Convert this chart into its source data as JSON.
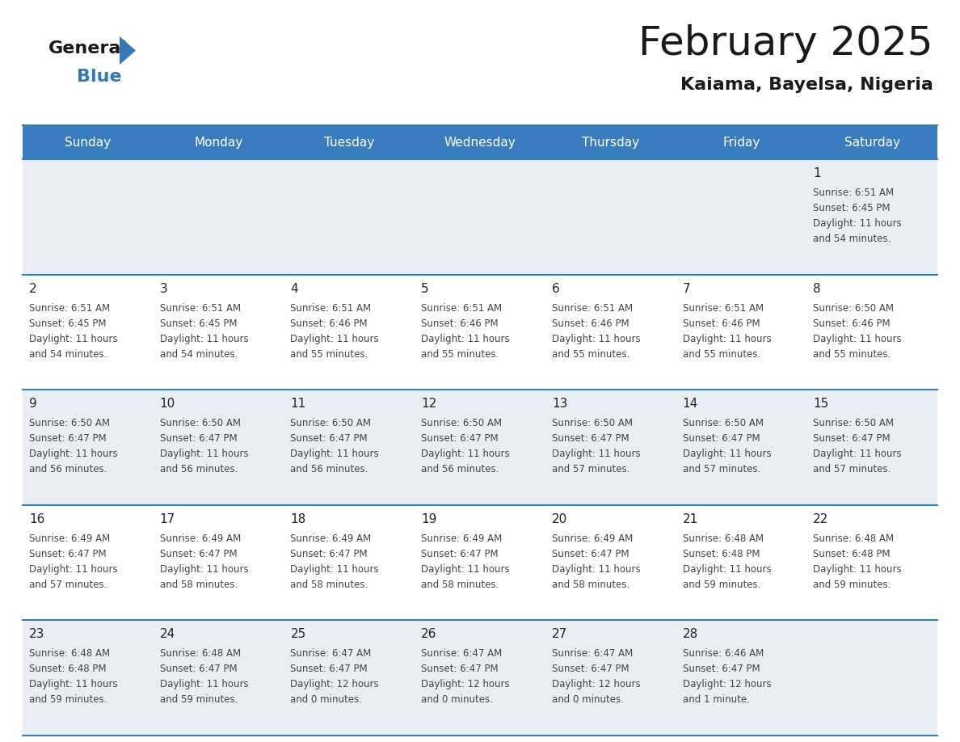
{
  "title": "February 2025",
  "subtitle": "Kaiama, Bayelsa, Nigeria",
  "header_bg": "#3a7dbf",
  "header_text_color": "#ffffff",
  "cell_bg_odd": "#e8eef4",
  "cell_bg_even": "#ffffff",
  "border_color": "#3a7dbf",
  "text_color": "#444444",
  "days_of_week": [
    "Sunday",
    "Monday",
    "Tuesday",
    "Wednesday",
    "Thursday",
    "Friday",
    "Saturday"
  ],
  "calendar": [
    [
      null,
      null,
      null,
      null,
      null,
      null,
      {
        "day": "1",
        "sunrise": "6:51 AM",
        "sunset": "6:45 PM",
        "daylight1": "11 hours",
        "daylight2": "and 54 minutes."
      }
    ],
    [
      {
        "day": "2",
        "sunrise": "6:51 AM",
        "sunset": "6:45 PM",
        "daylight1": "11 hours",
        "daylight2": "and 54 minutes."
      },
      {
        "day": "3",
        "sunrise": "6:51 AM",
        "sunset": "6:45 PM",
        "daylight1": "11 hours",
        "daylight2": "and 54 minutes."
      },
      {
        "day": "4",
        "sunrise": "6:51 AM",
        "sunset": "6:46 PM",
        "daylight1": "11 hours",
        "daylight2": "and 55 minutes."
      },
      {
        "day": "5",
        "sunrise": "6:51 AM",
        "sunset": "6:46 PM",
        "daylight1": "11 hours",
        "daylight2": "and 55 minutes."
      },
      {
        "day": "6",
        "sunrise": "6:51 AM",
        "sunset": "6:46 PM",
        "daylight1": "11 hours",
        "daylight2": "and 55 minutes."
      },
      {
        "day": "7",
        "sunrise": "6:51 AM",
        "sunset": "6:46 PM",
        "daylight1": "11 hours",
        "daylight2": "and 55 minutes."
      },
      {
        "day": "8",
        "sunrise": "6:50 AM",
        "sunset": "6:46 PM",
        "daylight1": "11 hours",
        "daylight2": "and 55 minutes."
      }
    ],
    [
      {
        "day": "9",
        "sunrise": "6:50 AM",
        "sunset": "6:47 PM",
        "daylight1": "11 hours",
        "daylight2": "and 56 minutes."
      },
      {
        "day": "10",
        "sunrise": "6:50 AM",
        "sunset": "6:47 PM",
        "daylight1": "11 hours",
        "daylight2": "and 56 minutes."
      },
      {
        "day": "11",
        "sunrise": "6:50 AM",
        "sunset": "6:47 PM",
        "daylight1": "11 hours",
        "daylight2": "and 56 minutes."
      },
      {
        "day": "12",
        "sunrise": "6:50 AM",
        "sunset": "6:47 PM",
        "daylight1": "11 hours",
        "daylight2": "and 56 minutes."
      },
      {
        "day": "13",
        "sunrise": "6:50 AM",
        "sunset": "6:47 PM",
        "daylight1": "11 hours",
        "daylight2": "and 57 minutes."
      },
      {
        "day": "14",
        "sunrise": "6:50 AM",
        "sunset": "6:47 PM",
        "daylight1": "11 hours",
        "daylight2": "and 57 minutes."
      },
      {
        "day": "15",
        "sunrise": "6:50 AM",
        "sunset": "6:47 PM",
        "daylight1": "11 hours",
        "daylight2": "and 57 minutes."
      }
    ],
    [
      {
        "day": "16",
        "sunrise": "6:49 AM",
        "sunset": "6:47 PM",
        "daylight1": "11 hours",
        "daylight2": "and 57 minutes."
      },
      {
        "day": "17",
        "sunrise": "6:49 AM",
        "sunset": "6:47 PM",
        "daylight1": "11 hours",
        "daylight2": "and 58 minutes."
      },
      {
        "day": "18",
        "sunrise": "6:49 AM",
        "sunset": "6:47 PM",
        "daylight1": "11 hours",
        "daylight2": "and 58 minutes."
      },
      {
        "day": "19",
        "sunrise": "6:49 AM",
        "sunset": "6:47 PM",
        "daylight1": "11 hours",
        "daylight2": "and 58 minutes."
      },
      {
        "day": "20",
        "sunrise": "6:49 AM",
        "sunset": "6:47 PM",
        "daylight1": "11 hours",
        "daylight2": "and 58 minutes."
      },
      {
        "day": "21",
        "sunrise": "6:48 AM",
        "sunset": "6:48 PM",
        "daylight1": "11 hours",
        "daylight2": "and 59 minutes."
      },
      {
        "day": "22",
        "sunrise": "6:48 AM",
        "sunset": "6:48 PM",
        "daylight1": "11 hours",
        "daylight2": "and 59 minutes."
      }
    ],
    [
      {
        "day": "23",
        "sunrise": "6:48 AM",
        "sunset": "6:48 PM",
        "daylight1": "11 hours",
        "daylight2": "and 59 minutes."
      },
      {
        "day": "24",
        "sunrise": "6:48 AM",
        "sunset": "6:47 PM",
        "daylight1": "11 hours",
        "daylight2": "and 59 minutes."
      },
      {
        "day": "25",
        "sunrise": "6:47 AM",
        "sunset": "6:47 PM",
        "daylight1": "12 hours",
        "daylight2": "and 0 minutes."
      },
      {
        "day": "26",
        "sunrise": "6:47 AM",
        "sunset": "6:47 PM",
        "daylight1": "12 hours",
        "daylight2": "and 0 minutes."
      },
      {
        "day": "27",
        "sunrise": "6:47 AM",
        "sunset": "6:47 PM",
        "daylight1": "12 hours",
        "daylight2": "and 0 minutes."
      },
      {
        "day": "28",
        "sunrise": "6:46 AM",
        "sunset": "6:47 PM",
        "daylight1": "12 hours",
        "daylight2": "and 1 minute."
      },
      null
    ]
  ]
}
